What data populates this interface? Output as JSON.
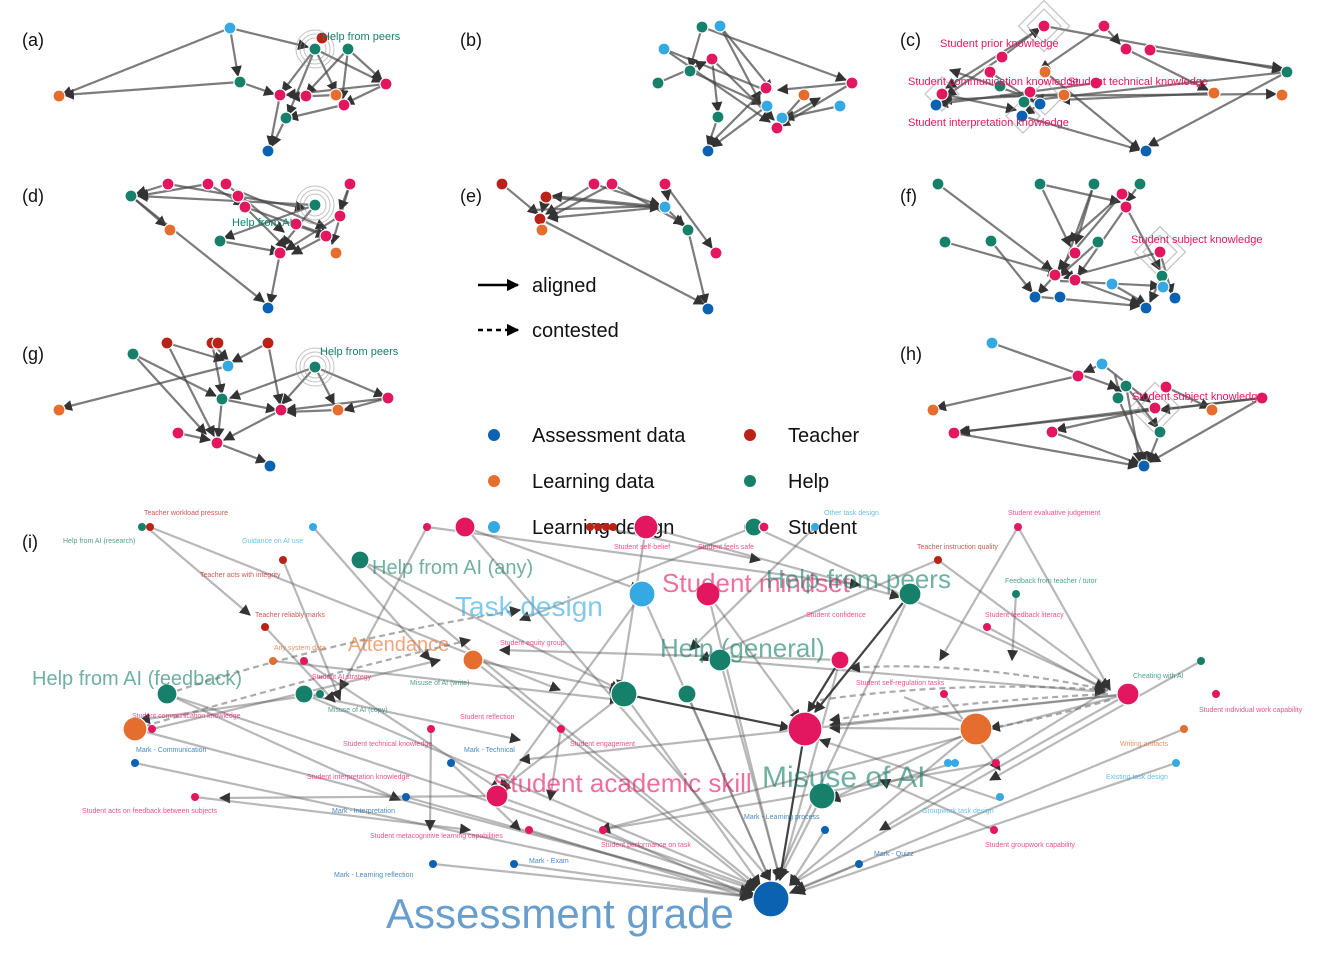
{
  "panels": [
    {
      "id": "a",
      "label": "(a)",
      "focus": "Help from peers"
    },
    {
      "id": "b",
      "label": "(b)",
      "focus": ""
    },
    {
      "id": "c",
      "label": "(c)",
      "focus": "Student prior knowledge",
      "extra": [
        "Student communication knowledge",
        "Student technical knowledge",
        "Student interpretation knowledge"
      ]
    },
    {
      "id": "d",
      "label": "(d)",
      "focus": "Help from AI"
    },
    {
      "id": "e",
      "label": "(e)",
      "focus": ""
    },
    {
      "id": "f",
      "label": "(f)",
      "focus": "Student subject knowledge"
    },
    {
      "id": "g",
      "label": "(g)",
      "focus": "Help from peers"
    },
    {
      "id": "h",
      "label": "(h)",
      "focus": "Student subject knowledge"
    },
    {
      "id": "i",
      "label": "(i)",
      "focus": ""
    }
  ],
  "legend": {
    "edges": [
      {
        "label": "aligned",
        "style": "solid"
      },
      {
        "label": "contested",
        "style": "dashed"
      }
    ],
    "categories": [
      {
        "label": "Assessment data",
        "color": "#0b62b0"
      },
      {
        "label": "Teacher",
        "color": "#b82217"
      },
      {
        "label": "Learning data",
        "color": "#e56d2d"
      },
      {
        "label": "Help",
        "color": "#16806a"
      },
      {
        "label": "Learning design",
        "color": "#35a9e2"
      },
      {
        "label": "Student",
        "color": "#e3175f"
      }
    ]
  },
  "colors": {
    "assessment_data": "#0b62b0",
    "teacher": "#b82217",
    "learning_data": "#e56d2d",
    "help": "#16806a",
    "learning_design": "#35a9e2",
    "student": "#e3175f"
  },
  "panel_i": {
    "large_labels": [
      {
        "text": "Assessment grade",
        "cat": "assessment_data"
      },
      {
        "text": "Misuse of AI",
        "cat": "help"
      },
      {
        "text": "Student academic skill",
        "cat": "student"
      },
      {
        "text": "Help (general)",
        "cat": "help"
      },
      {
        "text": "Task design",
        "cat": "learning_design"
      },
      {
        "text": "Student mindset",
        "cat": "student"
      },
      {
        "text": "Help from peers",
        "cat": "help"
      },
      {
        "text": "Help from AI (any)",
        "cat": "help"
      },
      {
        "text": "Attendance",
        "cat": "learning_data"
      },
      {
        "text": "Help from AI (feedback)",
        "cat": "help"
      }
    ],
    "small_labels": [
      {
        "text": "Teacher workload pressure",
        "cat": "teacher"
      },
      {
        "text": "Help from AI (research)",
        "cat": "help"
      },
      {
        "text": "Guidance on AI use",
        "cat": "learning_design"
      },
      {
        "text": "Teacher acts with integrity",
        "cat": "teacher"
      },
      {
        "text": "Teacher reliably marks",
        "cat": "teacher"
      },
      {
        "text": "Any system data",
        "cat": "learning_data"
      },
      {
        "text": "Student AI strategy",
        "cat": "student"
      },
      {
        "text": "Student communication knowledge",
        "cat": "student"
      },
      {
        "text": "Misuse of AI (write)",
        "cat": "help"
      },
      {
        "text": "Misuse of AI (copy)",
        "cat": "help"
      },
      {
        "text": "Mark - Communication",
        "cat": "assessment_data"
      },
      {
        "text": "Student technical knowledge",
        "cat": "student"
      },
      {
        "text": "Mark - Technical",
        "cat": "assessment_data"
      },
      {
        "text": "Student interpretation knowledge",
        "cat": "student"
      },
      {
        "text": "Student acts on feedback between subjects",
        "cat": "student"
      },
      {
        "text": "Mark - Interpretation",
        "cat": "assessment_data"
      },
      {
        "text": "Student metacognitive learning capabilities",
        "cat": "student"
      },
      {
        "text": "Mark - Learning reflection",
        "cat": "assessment_data"
      },
      {
        "text": "Mark - Exam",
        "cat": "assessment_data"
      },
      {
        "text": "Student performance on task",
        "cat": "student"
      },
      {
        "text": "Mark - Learning process",
        "cat": "assessment_data"
      },
      {
        "text": "Mark - Quizz",
        "cat": "assessment_data"
      },
      {
        "text": "Student groupwork capability",
        "cat": "student"
      },
      {
        "text": "Groupwork task design",
        "cat": "learning_design"
      },
      {
        "text": "Existing task design",
        "cat": "learning_design"
      },
      {
        "text": "Writing artifacts",
        "cat": "learning_data"
      },
      {
        "text": "Student individual work capability",
        "cat": "student"
      },
      {
        "text": "Cheating with AI",
        "cat": "help"
      },
      {
        "text": "Feedback from teacher / tutor",
        "cat": "help"
      },
      {
        "text": "Student feedback literacy",
        "cat": "student"
      },
      {
        "text": "Teacher instruction quality",
        "cat": "teacher"
      },
      {
        "text": "Student evaluative judgement",
        "cat": "student"
      },
      {
        "text": "Other task design",
        "cat": "learning_design"
      },
      {
        "text": "Student self-belief",
        "cat": "student"
      },
      {
        "text": "Student feels safe",
        "cat": "student"
      },
      {
        "text": "Student confidence",
        "cat": "student"
      },
      {
        "text": "Student equity group",
        "cat": "student"
      },
      {
        "text": "Student engagement",
        "cat": "student"
      },
      {
        "text": "Student self-regulation tasks",
        "cat": "student"
      },
      {
        "text": "Student reflection",
        "cat": "student"
      }
    ]
  }
}
